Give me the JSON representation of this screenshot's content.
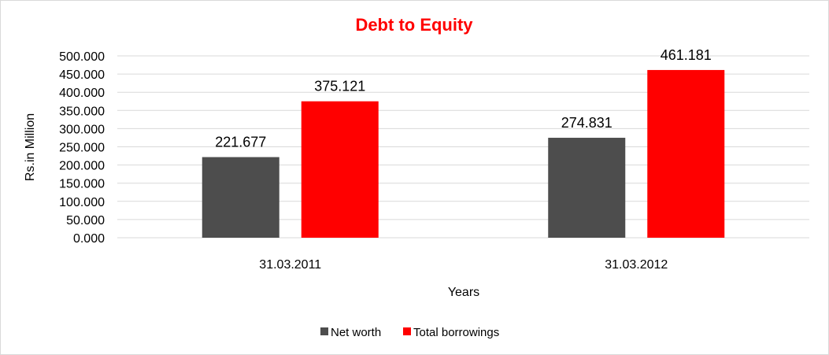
{
  "chart_data": {
    "type": "bar",
    "title": "Debt to Equity",
    "title_color": "#ff0000",
    "xlabel": "Years",
    "ylabel": "Rs.in Million",
    "categories": [
      "31.03.2011",
      "31.03.2012"
    ],
    "series": [
      {
        "name": "Net worth",
        "color": "#4d4d4d",
        "values": [
          221.677,
          274.831
        ],
        "labels": [
          "221.677",
          "274.831"
        ]
      },
      {
        "name": "Total borrowings",
        "color": "#ff0000",
        "values": [
          375.121,
          461.181
        ],
        "labels": [
          "375.121",
          "461.181"
        ]
      }
    ],
    "ylim": [
      0,
      500
    ],
    "yticks": [
      "0.000",
      "50.000",
      "100.000",
      "150.000",
      "200.000",
      "250.000",
      "300.000",
      "350.000",
      "400.000",
      "450.000",
      "500.000"
    ],
    "grid": true,
    "legend_position": "bottom"
  }
}
